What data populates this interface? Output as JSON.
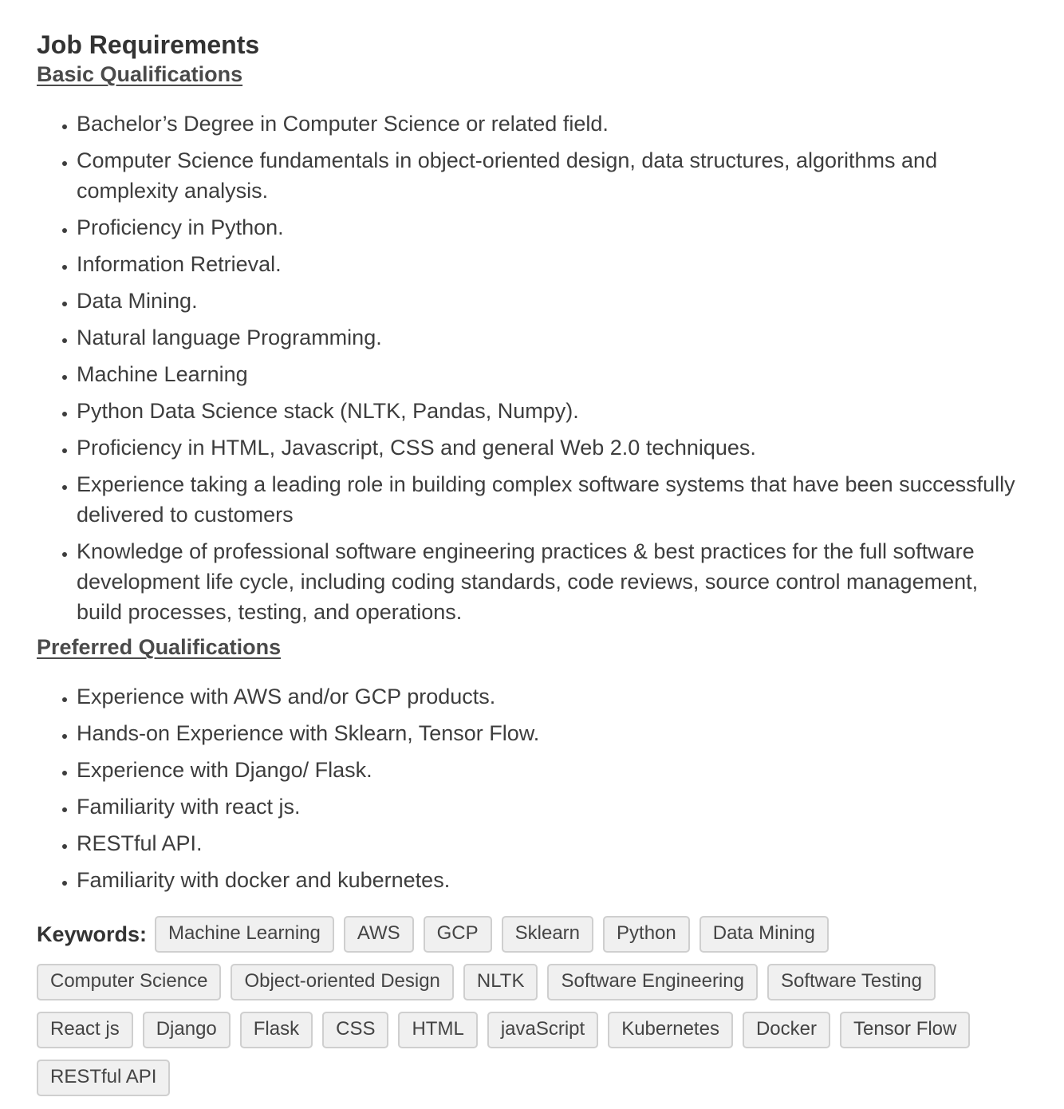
{
  "page_title": "Job Requirements",
  "basic": {
    "title": "Basic Qualifications",
    "items": [
      "Bachelor’s Degree in Computer Science or related field.",
      "Computer Science fundamentals in object-oriented design, data structures, algorithms and complexity analysis.",
      "Proficiency in Python.",
      "Information Retrieval.",
      "Data Mining.",
      "Natural language Programming.",
      "Machine Learning",
      "Python Data Science stack (NLTK, Pandas, Numpy).",
      "Proficiency in HTML, Javascript, CSS and general Web 2.0 techniques.",
      "Experience taking a leading role in building complex software systems that have been successfully delivered to customers",
      "Knowledge of professional software engineering practices & best practices for the full software development life cycle, including coding standards, code reviews, source control management, build processes, testing, and operations."
    ]
  },
  "preferred": {
    "title": "Preferred Qualifications",
    "items": [
      "Experience with AWS and/or GCP products.",
      "Hands-on Experience with Sklearn, Tensor Flow.",
      "Experience with Django/ Flask.",
      "Familiarity with react js.",
      "RESTful API.",
      "Familiarity with docker and kubernetes."
    ]
  },
  "keywords": {
    "label": "Keywords:",
    "tags": [
      "Machine Learning",
      "AWS",
      "GCP",
      "Sklearn",
      "Python",
      "Data Mining",
      "Computer Science",
      "Object-oriented Design",
      "NLTK",
      "Software Engineering",
      "Software Testing",
      "React js",
      "Django",
      "Flask",
      "CSS",
      "HTML",
      "javaScript",
      "Kubernetes",
      "Docker",
      "Tensor Flow",
      "RESTful API"
    ]
  }
}
